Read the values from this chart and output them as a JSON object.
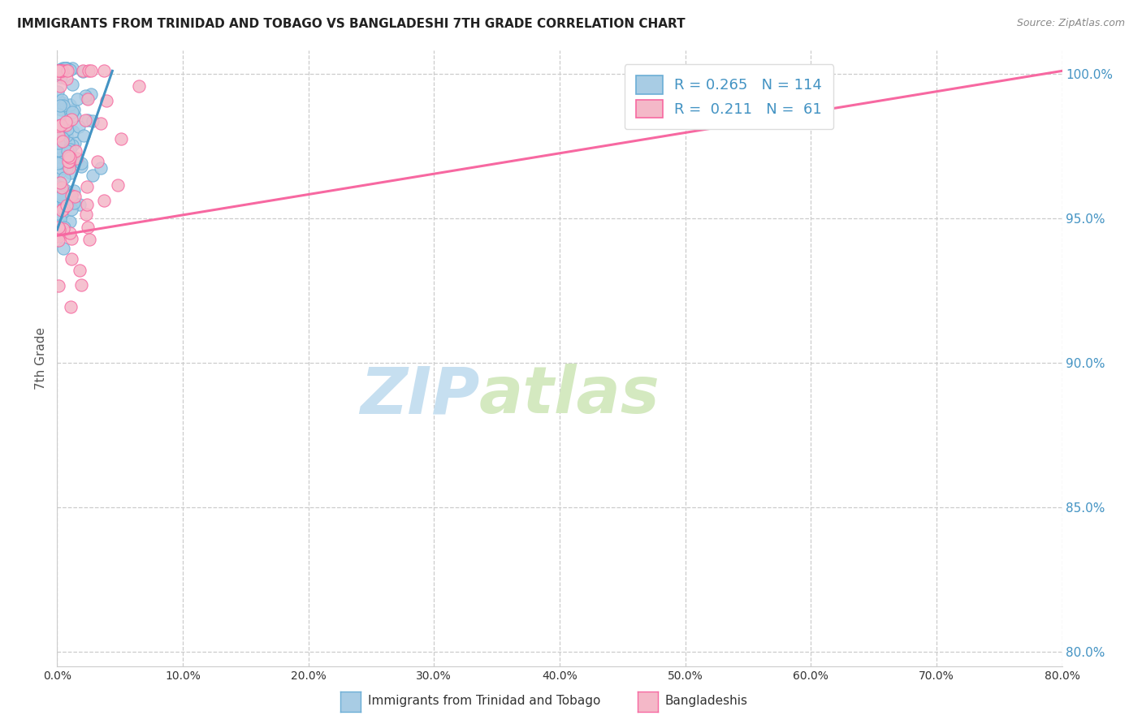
{
  "title": "IMMIGRANTS FROM TRINIDAD AND TOBAGO VS BANGLADESHI 7TH GRADE CORRELATION CHART",
  "source": "Source: ZipAtlas.com",
  "ylabel": "7th Grade",
  "legend_label1": "Immigrants from Trinidad and Tobago",
  "legend_label2": "Bangladeshis",
  "R1": 0.265,
  "N1": 114,
  "R2": 0.211,
  "N2": 61,
  "blue_color": "#a8cce4",
  "pink_color": "#f4b8c8",
  "blue_edge_color": "#6baed6",
  "pink_edge_color": "#f768a1",
  "blue_line_color": "#4393c3",
  "pink_line_color": "#f768a1",
  "blue_legend_color": "#4393c3",
  "watermark_zip_color": "#c6dff0",
  "watermark_atlas_color": "#d4e9c0",
  "background_color": "#ffffff",
  "xlim": [
    0.0,
    0.8
  ],
  "ylim": [
    0.795,
    1.008
  ],
  "ytick_positions": [
    0.8,
    0.85,
    0.9,
    0.95,
    1.0
  ],
  "ytick_labels": [
    "80.0%",
    "85.0%",
    "90.0%",
    "95.0%",
    "100.0%"
  ],
  "xtick_positions": [
    0.0,
    0.1,
    0.2,
    0.3,
    0.4,
    0.5,
    0.6,
    0.7,
    0.8
  ],
  "xtick_labels": [
    "0.0%",
    "10.0%",
    "20.0%",
    "30.0%",
    "40.0%",
    "50.0%",
    "60.0%",
    "70.0%",
    "80.0%"
  ],
  "blue_line_x": [
    0.0,
    0.044
  ],
  "blue_line_y": [
    0.946,
    1.001
  ],
  "pink_line_x": [
    0.0,
    0.8
  ],
  "pink_line_y": [
    0.944,
    1.001
  ],
  "blue_seed": 42,
  "pink_seed": 99
}
